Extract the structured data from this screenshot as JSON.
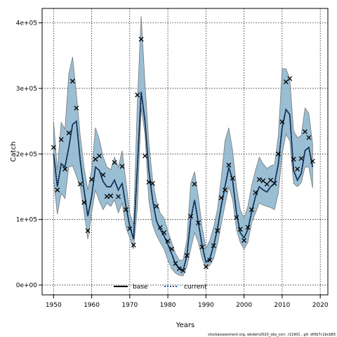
{
  "chart_data": {
    "type": "line",
    "xlabel": "Years",
    "ylabel": "Catch",
    "xlim": [
      1947,
      2022
    ],
    "ylim": [
      -15000,
      422000
    ],
    "x_ticks": [
      1950,
      1960,
      1970,
      1980,
      1990,
      2000,
      2010,
      2020
    ],
    "y_ticks": [
      0,
      100000,
      200000,
      300000,
      400000
    ],
    "y_tick_labels": [
      "0e+00",
      "1e+05",
      "2e+05",
      "3e+05",
      "4e+05"
    ],
    "grid": true,
    "legend_placement": "bottom-center",
    "legend": [
      {
        "label": "base",
        "style": "solid",
        "color": "#000000"
      },
      {
        "label": "current",
        "style": "dotted",
        "color": "#1f5fa8"
      }
    ],
    "band_color": "#8fb7cf",
    "band_edge_color": "#7a7a7a",
    "years": [
      1950,
      1951,
      1952,
      1953,
      1954,
      1955,
      1956,
      1957,
      1958,
      1959,
      1960,
      1961,
      1962,
      1963,
      1964,
      1965,
      1966,
      1967,
      1968,
      1969,
      1970,
      1971,
      1972,
      1973,
      1974,
      1975,
      1976,
      1977,
      1978,
      1979,
      1980,
      1981,
      1982,
      1983,
      1984,
      1985,
      1986,
      1987,
      1988,
      1989,
      1990,
      1991,
      1992,
      1993,
      1994,
      1995,
      1996,
      1997,
      1998,
      1999,
      2000,
      2001,
      2002,
      2003,
      2004,
      2005,
      2006,
      2007,
      2008,
      2009,
      2010,
      2011,
      2012,
      2013,
      2014,
      2015,
      2016,
      2017,
      2018
    ],
    "series": [
      {
        "name": "observed",
        "marker": "x",
        "values": [
          210000,
          145000,
          222000,
          177000,
          232000,
          311000,
          270000,
          154000,
          126000,
          83000,
          161000,
          192000,
          197000,
          168000,
          135000,
          136000,
          187000,
          135000,
          181000,
          115000,
          86000,
          61000,
          290000,
          375000,
          197000,
          157000,
          155000,
          120000,
          88000,
          80000,
          67000,
          55000,
          33000,
          25000,
          22000,
          45000,
          105000,
          154000,
          95000,
          58000,
          28000,
          38000,
          60000,
          83000,
          133000,
          145000,
          183000,
          163000,
          103000,
          85000,
          68000,
          88000,
          115000,
          141000,
          161000,
          159000,
          154000,
          160000,
          155000,
          200000,
          249000,
          310000,
          315000,
          192000,
          177000,
          193000,
          234000,
          225000,
          189000
        ]
      },
      {
        "name": "current",
        "values": [
          200000,
          150000,
          185000,
          180000,
          210000,
          245000,
          250000,
          190000,
          145000,
          105000,
          135000,
          180000,
          175000,
          158000,
          150000,
          150000,
          160000,
          145000,
          155000,
          120000,
          90000,
          70000,
          180000,
          295000,
          250000,
          175000,
          130000,
          98000,
          85000,
          75000,
          62000,
          48000,
          32000,
          26000,
          22000,
          45000,
          100000,
          130000,
          95000,
          60000,
          35000,
          40000,
          60000,
          85000,
          120000,
          150000,
          180000,
          160000,
          110000,
          80000,
          72000,
          85000,
          112000,
          135000,
          150000,
          145000,
          142000,
          150000,
          155000,
          185000,
          240000,
          268000,
          260000,
          175000,
          160000,
          170000,
          205000,
          210000,
          180000
        ]
      },
      {
        "name": "upper",
        "values": [
          250000,
          175000,
          248000,
          238000,
          322000,
          348000,
          292000,
          228000,
          180000,
          145000,
          175000,
          240000,
          222000,
          196000,
          180000,
          176000,
          195000,
          180000,
          205000,
          158000,
          110000,
          92000,
          280000,
          410000,
          308000,
          218000,
          160000,
          128000,
          110000,
          102000,
          82000,
          65000,
          48000,
          38000,
          38000,
          70000,
          155000,
          173000,
          135000,
          88000,
          56000,
          68000,
          88000,
          115000,
          162000,
          220000,
          240000,
          205000,
          150000,
          115000,
          102000,
          120000,
          152000,
          175000,
          195000,
          185000,
          178000,
          182000,
          184000,
          228000,
          330000,
          330000,
          315000,
          235000,
          225000,
          228000,
          270000,
          262000,
          215000
        ]
      },
      {
        "name": "lower",
        "values": [
          160000,
          108000,
          140000,
          132000,
          180000,
          182000,
          166000,
          150000,
          112000,
          70000,
          110000,
          145000,
          128000,
          115000,
          125000,
          120000,
          130000,
          110000,
          125000,
          88000,
          72000,
          55000,
          118000,
          270000,
          230000,
          130000,
          92000,
          76000,
          65000,
          55000,
          38000,
          25000,
          18000,
          15000,
          14000,
          28000,
          55000,
          80000,
          65000,
          40000,
          26000,
          30000,
          40000,
          62000,
          92000,
          122000,
          150000,
          130000,
          85000,
          65000,
          55000,
          65000,
          95000,
          110000,
          125000,
          122000,
          120000,
          118000,
          115000,
          140000,
          200000,
          230000,
          220000,
          155000,
          150000,
          156000,
          180000,
          180000,
          148000
        ]
      }
    ]
  },
  "footer": "stockassessment.org, wkdem2020_obs_corr, r11901 , git: df0b7c1bcb83"
}
